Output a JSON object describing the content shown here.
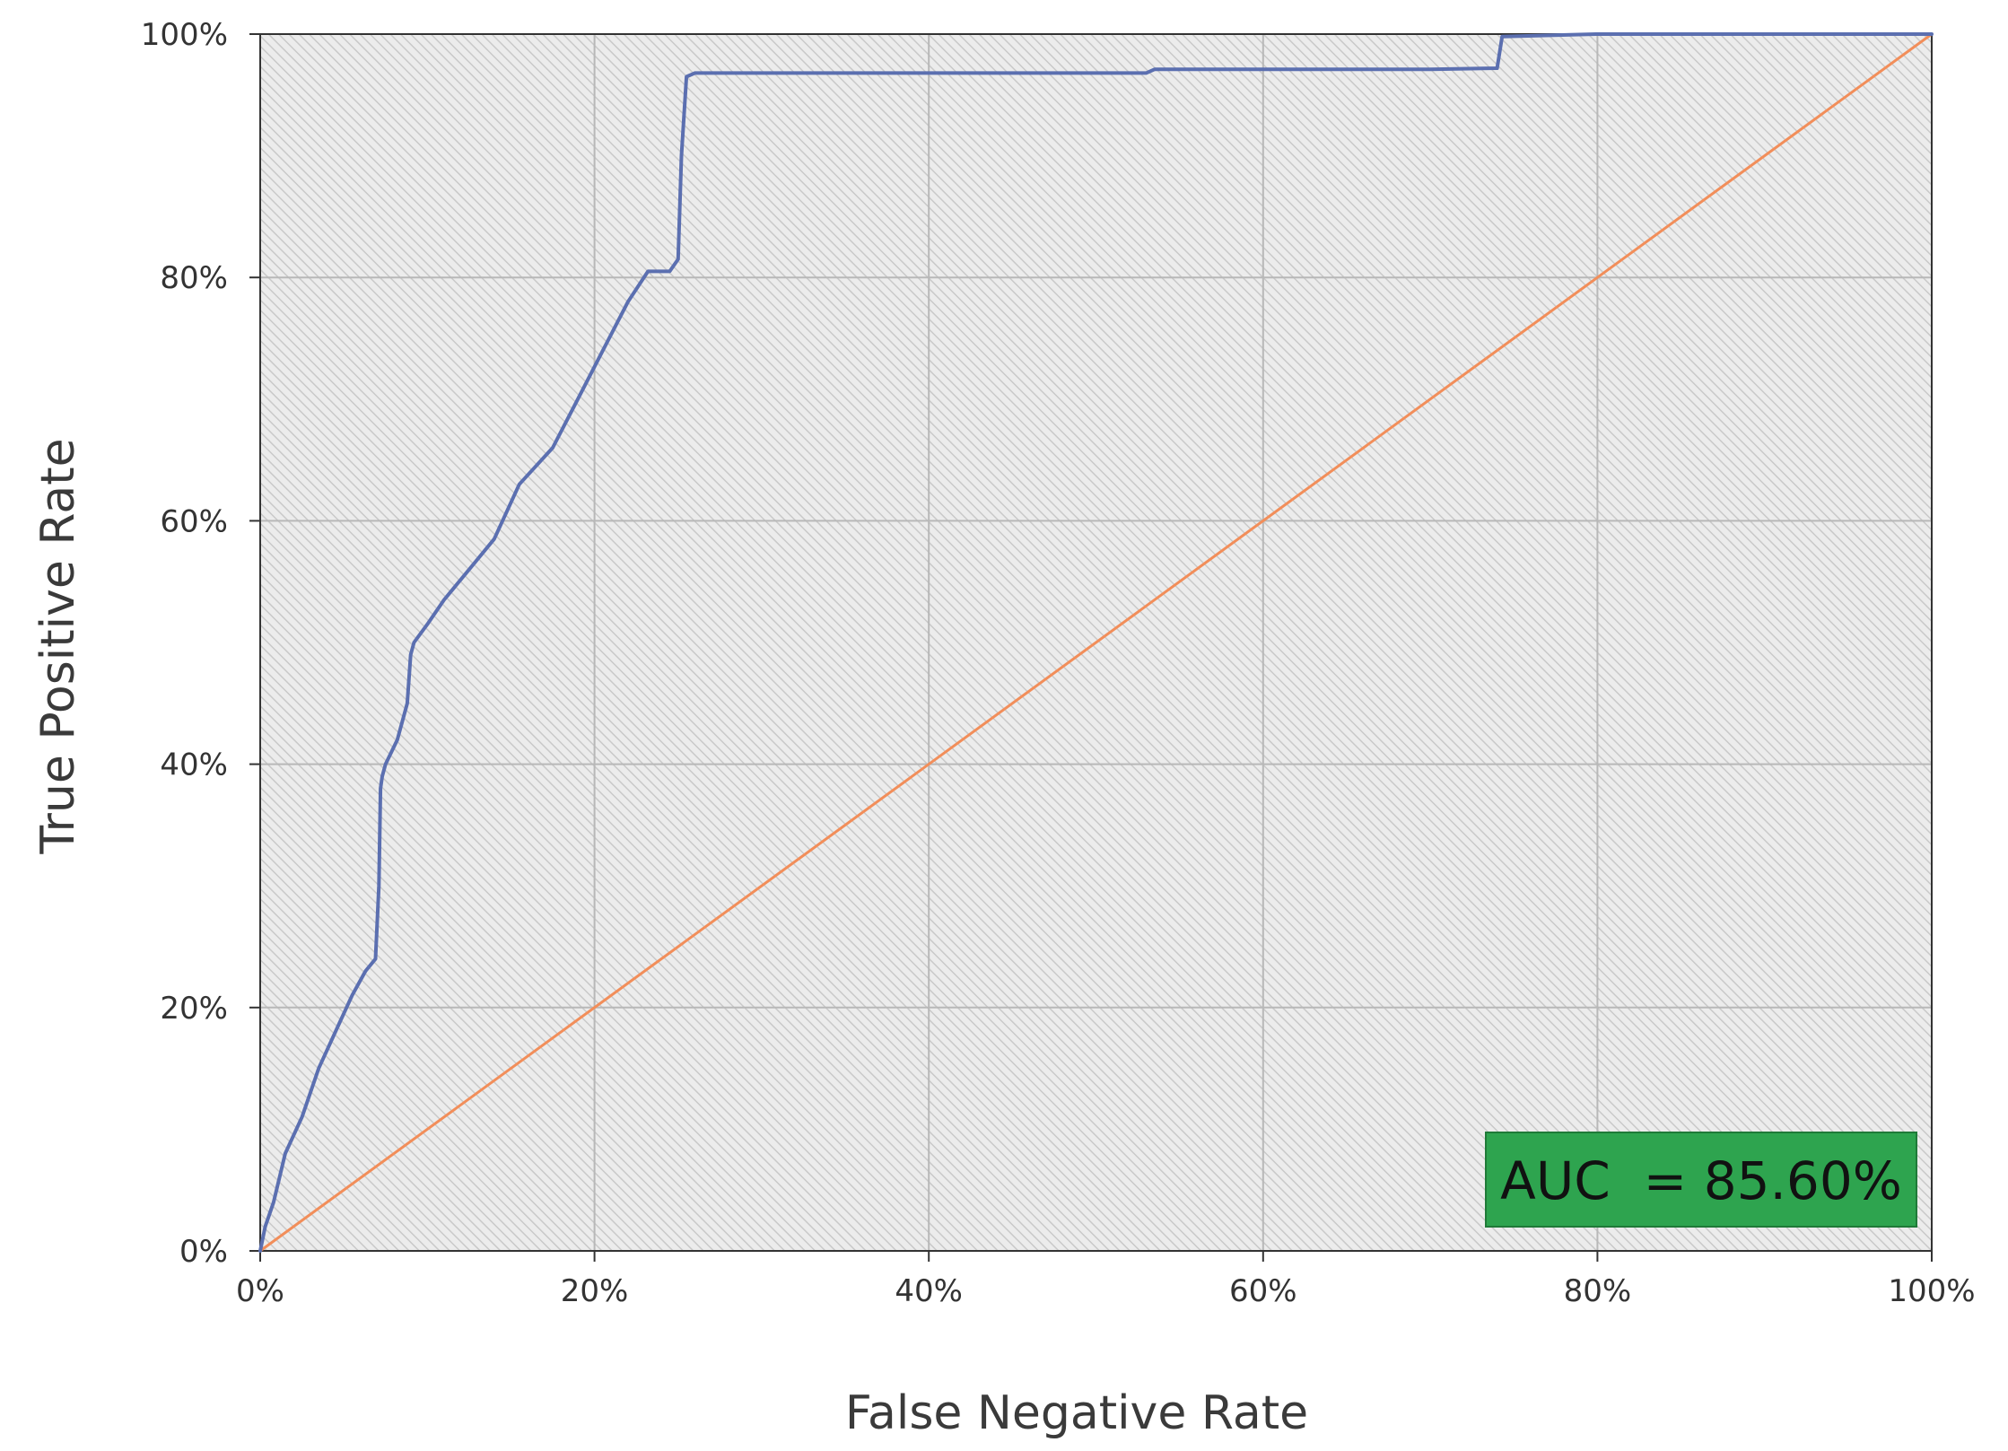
{
  "chart_data": {
    "type": "line",
    "title": "",
    "xlabel": "False Negative Rate",
    "ylabel": "True Positive Rate",
    "xlim": [
      0,
      100
    ],
    "ylim": [
      0,
      100
    ],
    "x_ticks": [
      "0%",
      "20%",
      "40%",
      "60%",
      "80%",
      "100%"
    ],
    "y_ticks": [
      "0%",
      "20%",
      "40%",
      "60%",
      "80%",
      "100%"
    ],
    "grid": true,
    "legend": "none",
    "annotation": {
      "text": "AUC  = 85.60%",
      "position": "bottom-right",
      "background": "#2ea44f"
    },
    "series": [
      {
        "color": "#5b6fb0",
        "x": [
          0,
          0.3,
          0.8,
          1.5,
          2.5,
          3.5,
          4.5,
          5.5,
          6.3,
          6.9,
          7.1,
          7.2,
          7.3,
          7.5,
          8.2,
          8.8,
          9.0,
          9.2,
          10.0,
          11.0,
          12.5,
          14.0,
          15.5,
          17.5,
          19.0,
          20.5,
          22.0,
          23.2,
          24.5,
          25.0,
          25.2,
          25.5,
          26.0,
          40.0,
          53.0,
          53.5,
          70.0,
          74.0,
          74.3,
          80.0,
          100.0
        ],
        "y": [
          0,
          2,
          4,
          8,
          11,
          15,
          18,
          21,
          23,
          24,
          30,
          38,
          39,
          40,
          42,
          45,
          49,
          50,
          51.5,
          53.5,
          56,
          58.5,
          63,
          66,
          70,
          74,
          78,
          80.5,
          80.5,
          81.5,
          90,
          96.5,
          96.8,
          96.8,
          96.8,
          97.1,
          97.1,
          97.2,
          99.8,
          100,
          100
        ]
      },
      {
        "color": "#f28e5a",
        "x": [
          0,
          100
        ],
        "y": [
          0,
          100
        ]
      }
    ]
  }
}
